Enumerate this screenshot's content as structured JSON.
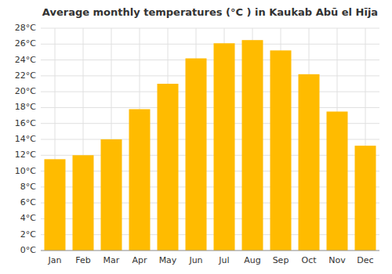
{
  "chart_data": {
    "type": "bar",
    "title": "Average monthly temperatures (°C ) in Kaukab Abū el Hīja",
    "categories": [
      "Jan",
      "Feb",
      "Mar",
      "Apr",
      "May",
      "Jun",
      "Jul",
      "Aug",
      "Sep",
      "Oct",
      "Nov",
      "Dec"
    ],
    "values": [
      11.5,
      12.0,
      14.0,
      17.8,
      21.0,
      24.2,
      26.1,
      26.5,
      25.2,
      22.2,
      17.5,
      13.2
    ],
    "color": "#FFBB00",
    "ylim": [
      0,
      28
    ],
    "yticks": [
      {
        "value": 0,
        "label": "0°C"
      },
      {
        "value": 2,
        "label": "2°C"
      },
      {
        "value": 4,
        "label": "4°C"
      },
      {
        "value": 6,
        "label": "6°C"
      },
      {
        "value": 8,
        "label": "8°C"
      },
      {
        "value": 10,
        "label": "10°C"
      },
      {
        "value": 12,
        "label": "12°C"
      },
      {
        "value": 14,
        "label": "14°C"
      },
      {
        "value": 16,
        "label": "16°C"
      },
      {
        "value": 18,
        "label": "18°C"
      },
      {
        "value": 20,
        "label": "20°C"
      },
      {
        "value": 22,
        "label": "22°C"
      },
      {
        "value": 24,
        "label": "24°C"
      },
      {
        "value": 26,
        "label": "26°C"
      },
      {
        "value": 28,
        "label": "28°C"
      }
    ],
    "grid": true
  }
}
